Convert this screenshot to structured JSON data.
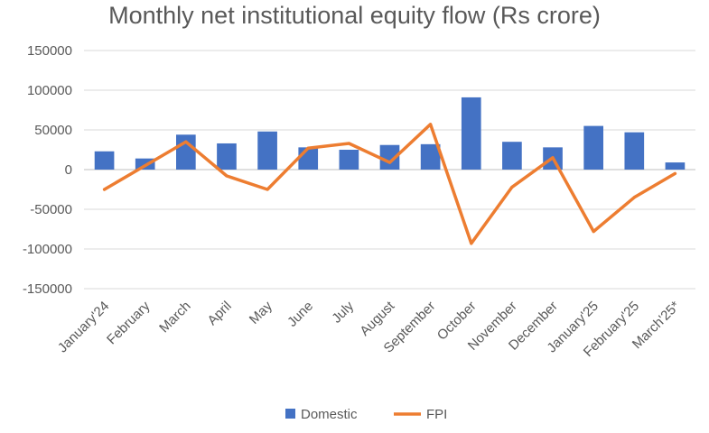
{
  "chart_data": {
    "type": "bar",
    "title": "Monthly net institutional equity flow (Rs crore)",
    "categories": [
      "January'24",
      "February",
      "March",
      "April",
      "May",
      "June",
      "July",
      "August",
      "September",
      "October",
      "November",
      "December",
      "January'25",
      "February'25",
      "March'25*"
    ],
    "series": [
      {
        "name": "Domestic",
        "type": "bar",
        "color": "#4472C4",
        "values": [
          23000,
          14000,
          44000,
          33000,
          48000,
          28000,
          25000,
          31000,
          32000,
          91000,
          35000,
          28000,
          55000,
          47000,
          9000
        ]
      },
      {
        "name": "FPI",
        "type": "line",
        "color": "#ED7D31",
        "values": [
          -25000,
          5000,
          35000,
          -8000,
          -25000,
          27000,
          33000,
          9000,
          57000,
          -93000,
          -22000,
          15000,
          -78000,
          -35000,
          -5000
        ]
      }
    ],
    "ylim": [
      -150000,
      150000
    ],
    "yticks": [
      150000,
      100000,
      50000,
      0,
      -50000,
      -100000,
      -150000
    ],
    "xlabel": "",
    "ylabel": "",
    "grid": true,
    "legend_position": "bottom"
  }
}
